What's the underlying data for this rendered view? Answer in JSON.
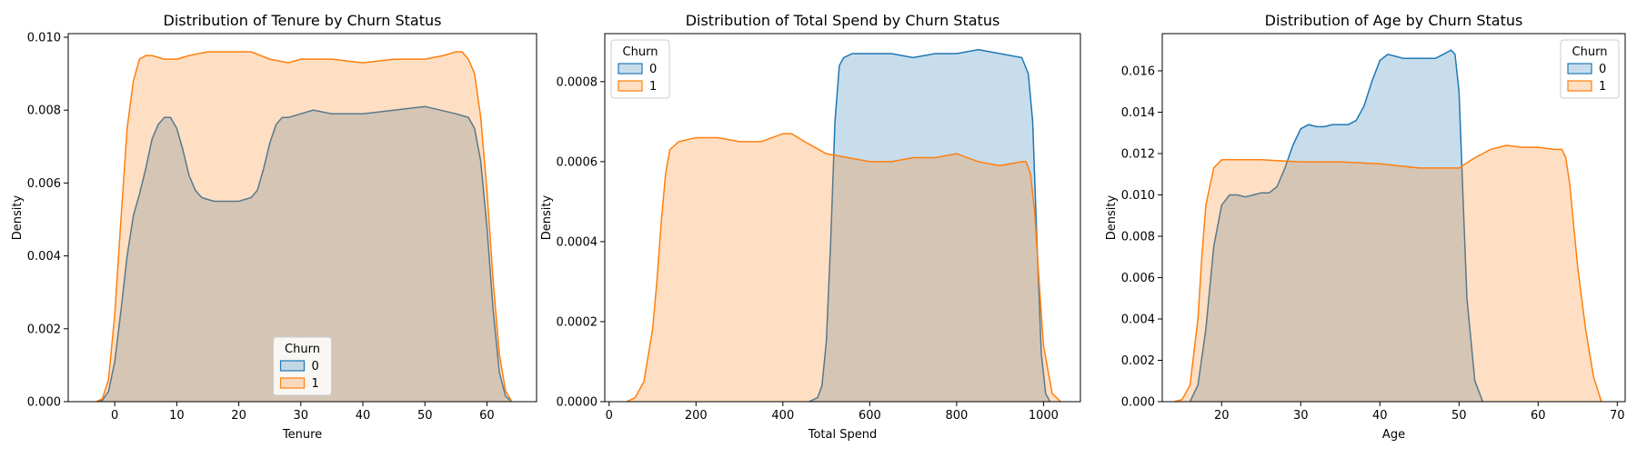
{
  "chart_data": [
    {
      "type": "area",
      "title": "Distribution of Tenure by Churn Status",
      "xlabel": "Tenure",
      "ylabel": "Density",
      "xlim": [
        -7.5,
        68
      ],
      "ylim": [
        0,
        0.0101
      ],
      "xticks": [
        0,
        10,
        20,
        30,
        40,
        50,
        60
      ],
      "yticks": [
        0.0,
        0.002,
        0.004,
        0.006,
        0.008,
        0.01
      ],
      "ytick_labels": [
        "0.000",
        "0.002",
        "0.004",
        "0.006",
        "0.008",
        "0.010"
      ],
      "legend": {
        "title": "Churn",
        "placement": "lower-center"
      },
      "series": [
        {
          "name": "0",
          "color": "#1f77b4",
          "x": [
            -3,
            -2,
            -1,
            0,
            1,
            2,
            3,
            4,
            5,
            6,
            7,
            8,
            9,
            10,
            11,
            12,
            13,
            14,
            15,
            16,
            18,
            20,
            22,
            23,
            24,
            25,
            26,
            27,
            28,
            30,
            32,
            35,
            40,
            45,
            50,
            55,
            57,
            58,
            59,
            60,
            61,
            62,
            63,
            64
          ],
          "y": [
            0,
            4e-05,
            0.00028,
            0.0011,
            0.0025,
            0.004,
            0.0051,
            0.0057,
            0.0064,
            0.0072,
            0.0076,
            0.0078,
            0.0078,
            0.0075,
            0.0069,
            0.0062,
            0.0058,
            0.0056,
            0.00555,
            0.0055,
            0.0055,
            0.0055,
            0.0056,
            0.0058,
            0.0064,
            0.0071,
            0.0076,
            0.0078,
            0.0078,
            0.0079,
            0.008,
            0.0079,
            0.0079,
            0.008,
            0.0081,
            0.0079,
            0.0078,
            0.0075,
            0.0066,
            0.0048,
            0.0025,
            0.0008,
            0.00015,
            0
          ]
        },
        {
          "name": "1",
          "color": "#ff7f0e",
          "x": [
            -3,
            -2,
            -1,
            0,
            1,
            2,
            3,
            4,
            5,
            6,
            8,
            10,
            12,
            15,
            18,
            20,
            22,
            25,
            28,
            30,
            35,
            40,
            45,
            50,
            53,
            55,
            56,
            57,
            58,
            59,
            60,
            61,
            62,
            63,
            64
          ],
          "y": [
            0,
            8e-05,
            0.0006,
            0.0024,
            0.005,
            0.0075,
            0.0088,
            0.0094,
            0.0095,
            0.0095,
            0.0094,
            0.0094,
            0.0095,
            0.0096,
            0.0096,
            0.0096,
            0.0096,
            0.0094,
            0.0093,
            0.0094,
            0.0094,
            0.0093,
            0.0094,
            0.0094,
            0.0095,
            0.0096,
            0.0096,
            0.0094,
            0.009,
            0.0078,
            0.0058,
            0.0033,
            0.0013,
            0.0003,
            0
          ]
        }
      ]
    },
    {
      "type": "area",
      "title": "Distribution of Total Spend by Churn Status",
      "xlabel": "Total Spend",
      "ylabel": "Density",
      "xlim": [
        -10,
        1085
      ],
      "ylim": [
        0,
        0.00092
      ],
      "xticks": [
        0,
        200,
        400,
        600,
        800,
        1000
      ],
      "yticks": [
        0.0,
        0.0002,
        0.0004,
        0.0006,
        0.0008
      ],
      "ytick_labels": [
        "0.0000",
        "0.0002",
        "0.0004",
        "0.0006",
        "0.0008"
      ],
      "legend": {
        "title": "Churn",
        "placement": "upper-left"
      },
      "series": [
        {
          "name": "0",
          "color": "#1f77b4",
          "x": [
            460,
            480,
            490,
            500,
            510,
            520,
            530,
            540,
            560,
            600,
            650,
            700,
            750,
            800,
            850,
            900,
            950,
            965,
            975,
            985,
            995,
            1005,
            1015
          ],
          "y": [
            0,
            1e-05,
            4e-05,
            0.00015,
            0.0004,
            0.0007,
            0.00084,
            0.00086,
            0.00087,
            0.00087,
            0.00087,
            0.00086,
            0.00087,
            0.00087,
            0.00088,
            0.00087,
            0.00086,
            0.00082,
            0.0007,
            0.0004,
            0.00012,
            2e-05,
            0
          ]
        },
        {
          "name": "1",
          "color": "#ff7f0e",
          "x": [
            40,
            60,
            80,
            100,
            110,
            120,
            130,
            140,
            160,
            200,
            250,
            300,
            350,
            400,
            420,
            450,
            500,
            550,
            600,
            650,
            700,
            750,
            800,
            850,
            900,
            950,
            960,
            970,
            980,
            990,
            1000,
            1020,
            1040
          ],
          "y": [
            0,
            1e-05,
            5e-05,
            0.00018,
            0.0003,
            0.00045,
            0.00057,
            0.00063,
            0.00065,
            0.00066,
            0.00066,
            0.00065,
            0.00065,
            0.00067,
            0.00067,
            0.00065,
            0.00062,
            0.00061,
            0.0006,
            0.0006,
            0.00061,
            0.00061,
            0.00062,
            0.0006,
            0.00059,
            0.0006,
            0.0006,
            0.00057,
            0.00047,
            0.0003,
            0.00014,
            2e-05,
            0
          ]
        }
      ]
    },
    {
      "type": "area",
      "title": "Distribution of Age by Churn Status",
      "xlabel": "Age",
      "ylabel": "Density",
      "xlim": [
        12.5,
        71
      ],
      "ylim": [
        0,
        0.0178
      ],
      "xticks": [
        20,
        30,
        40,
        50,
        60,
        70
      ],
      "yticks": [
        0.0,
        0.002,
        0.004,
        0.006,
        0.008,
        0.01,
        0.012,
        0.014,
        0.016
      ],
      "ytick_labels": [
        "0.000",
        "0.002",
        "0.004",
        "0.006",
        "0.008",
        "0.010",
        "0.012",
        "0.014",
        "0.016"
      ],
      "legend": {
        "title": "Churn",
        "placement": "upper-right"
      },
      "series": [
        {
          "name": "0",
          "color": "#1f77b4",
          "x": [
            16,
            17,
            18,
            19,
            20,
            21,
            22,
            23,
            24,
            25,
            26,
            27,
            28,
            29,
            30,
            31,
            32,
            33,
            34,
            35,
            36,
            37,
            38,
            39,
            40,
            41,
            42,
            43,
            44,
            45,
            46,
            47,
            48,
            49,
            49.5,
            50,
            50.5,
            51,
            52,
            53
          ],
          "y": [
            0,
            0.0008,
            0.0035,
            0.0075,
            0.0095,
            0.01,
            0.01,
            0.0099,
            0.01,
            0.0101,
            0.0101,
            0.0104,
            0.0113,
            0.0124,
            0.0132,
            0.0134,
            0.0133,
            0.0133,
            0.0134,
            0.0134,
            0.0134,
            0.0136,
            0.0143,
            0.0155,
            0.0165,
            0.0168,
            0.0167,
            0.0166,
            0.0166,
            0.0166,
            0.0166,
            0.0166,
            0.0168,
            0.017,
            0.0168,
            0.015,
            0.01,
            0.005,
            0.001,
            0
          ]
        },
        {
          "name": "1",
          "color": "#ff7f0e",
          "x": [
            14,
            15,
            16,
            17,
            17.5,
            18,
            19,
            20,
            25,
            30,
            35,
            40,
            45,
            50,
            52,
            54,
            56,
            58,
            60,
            62,
            63,
            63.5,
            64,
            64.5,
            65,
            66,
            67,
            68
          ],
          "y": [
            0,
            0.0001,
            0.0008,
            0.004,
            0.007,
            0.0095,
            0.0113,
            0.0117,
            0.0117,
            0.0116,
            0.0116,
            0.0115,
            0.0113,
            0.0113,
            0.0118,
            0.0122,
            0.0124,
            0.0123,
            0.0123,
            0.0122,
            0.0122,
            0.0118,
            0.0105,
            0.0085,
            0.0065,
            0.0035,
            0.0012,
            0
          ]
        }
      ]
    }
  ]
}
